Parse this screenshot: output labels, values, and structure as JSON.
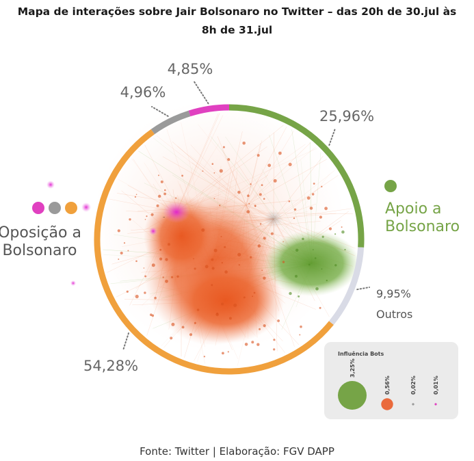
{
  "title_lines": [
    "Mapa de interações sobre Jair Bolsonaro no Twitter – das 20h de 30.jul às",
    "8h de 31.jul"
  ],
  "source": "Fonte: Twitter | Elaboração: FGV DAPP",
  "chart_data": {
    "type": "pie",
    "categories": [
      "Apoio a Bolsonaro",
      "Outros",
      "Oposição a Bolsonaro",
      "Cinza",
      "Rosa"
    ],
    "values": [
      25.96,
      9.95,
      54.28,
      4.96,
      4.85
    ],
    "value_labels": [
      "25,96%",
      "9,95%",
      "54,28%",
      "4,96%",
      "4,85%"
    ],
    "colors": [
      "#76a447",
      "#d9dbe6",
      "#f0a03c",
      "#9a9a9a",
      "#e040c0"
    ],
    "group_labels": {
      "apoio": [
        "Apoio a",
        "Bolsonaro"
      ],
      "oposicao": [
        "Oposição a",
        "Bolsonaro"
      ],
      "outros": "Outros"
    },
    "oposicao_legend_colors": [
      "#e040c0",
      "#9a9a9a",
      "#f0a03c"
    ],
    "apoio_legend_color": "#76a447",
    "bots": {
      "title": "Influência Bots",
      "items": [
        {
          "value": 3.25,
          "label": "3,25%",
          "color": "#76a447"
        },
        {
          "value": 0.56,
          "label": "0,56%",
          "color": "#ea6a3c"
        },
        {
          "value": 0.02,
          "label": "0,02%",
          "color": "#9a9a9a"
        },
        {
          "value": 0.01,
          "label": "0,01%",
          "color": "#e040c0"
        }
      ]
    }
  }
}
